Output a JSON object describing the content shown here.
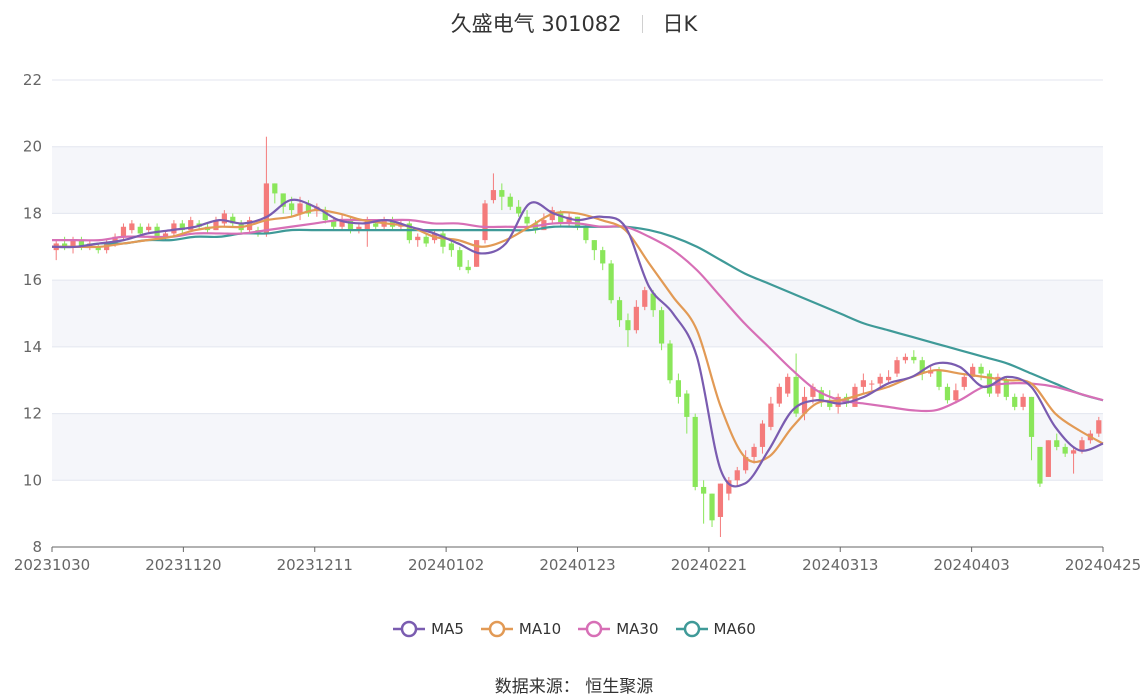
{
  "header": {
    "stock": "久盛电气 301082",
    "period": "日K"
  },
  "source": {
    "label": "数据来源：",
    "value": "恒生聚源"
  },
  "chart_data": {
    "type": "candlestick",
    "title": "久盛电气 301082 日K",
    "ylim": [
      8,
      22
    ],
    "yticks": [
      8,
      10,
      12,
      14,
      16,
      18,
      20,
      22
    ],
    "xticks": [
      "20231030",
      "20231120",
      "20231211",
      "20240102",
      "20240123",
      "20240221",
      "20240313",
      "20240403",
      "20240425"
    ],
    "legend_position": "bottom-center",
    "colors": {
      "up": "#f47b7b",
      "down": "#8ae65a",
      "MA5": "#7a5cb0",
      "MA10": "#e29a55",
      "MA30": "#d76fb6",
      "MA60": "#3f9a98"
    },
    "candles_ohlc": [
      [
        16.9,
        17.1,
        16.6,
        17.2
      ],
      [
        17.1,
        17.0,
        16.9,
        17.3
      ],
      [
        17.0,
        17.2,
        16.8,
        17.3
      ],
      [
        17.2,
        17.0,
        16.9,
        17.3
      ],
      [
        17.0,
        17.1,
        16.9,
        17.2
      ],
      [
        17.0,
        16.9,
        16.8,
        17.1
      ],
      [
        16.9,
        17.1,
        16.8,
        17.2
      ],
      [
        17.1,
        17.3,
        17.0,
        17.4
      ],
      [
        17.3,
        17.6,
        17.2,
        17.7
      ],
      [
        17.5,
        17.7,
        17.4,
        17.8
      ],
      [
        17.6,
        17.4,
        17.3,
        17.7
      ],
      [
        17.5,
        17.6,
        17.4,
        17.7
      ],
      [
        17.6,
        17.3,
        17.2,
        17.7
      ],
      [
        17.3,
        17.4,
        17.2,
        17.5
      ],
      [
        17.4,
        17.7,
        17.3,
        17.8
      ],
      [
        17.7,
        17.5,
        17.4,
        17.8
      ],
      [
        17.5,
        17.8,
        17.5,
        17.9
      ],
      [
        17.7,
        17.6,
        17.5,
        17.8
      ],
      [
        17.6,
        17.5,
        17.4,
        17.7
      ],
      [
        17.5,
        17.8,
        17.5,
        17.9
      ],
      [
        17.7,
        18.0,
        17.6,
        18.1
      ],
      [
        17.9,
        17.7,
        17.6,
        18.0
      ],
      [
        17.7,
        17.5,
        17.4,
        17.8
      ],
      [
        17.5,
        17.8,
        17.4,
        17.9
      ],
      [
        17.5,
        17.4,
        17.3,
        17.6
      ],
      [
        17.4,
        18.9,
        17.3,
        20.3
      ],
      [
        18.9,
        18.6,
        18.3,
        18.9
      ],
      [
        18.6,
        18.2,
        18.0,
        18.6
      ],
      [
        18.3,
        18.1,
        17.9,
        18.5
      ],
      [
        18.0,
        18.3,
        17.8,
        18.5
      ],
      [
        18.3,
        18.0,
        17.9,
        18.4
      ],
      [
        18.1,
        18.2,
        17.9,
        18.3
      ],
      [
        18.1,
        17.8,
        17.7,
        18.2
      ],
      [
        17.8,
        17.6,
        17.5,
        17.9
      ],
      [
        17.6,
        17.8,
        17.5,
        18.0
      ],
      [
        17.8,
        17.5,
        17.4,
        17.9
      ],
      [
        17.5,
        17.6,
        17.4,
        17.7
      ],
      [
        17.5,
        17.8,
        17.0,
        17.9
      ],
      [
        17.7,
        17.6,
        17.5,
        17.8
      ],
      [
        17.6,
        17.8,
        17.5,
        17.9
      ],
      [
        17.8,
        17.6,
        17.5,
        17.9
      ],
      [
        17.6,
        17.7,
        17.5,
        17.8
      ],
      [
        17.7,
        17.2,
        17.1,
        17.8
      ],
      [
        17.2,
        17.3,
        17.0,
        17.4
      ],
      [
        17.3,
        17.1,
        17.0,
        17.4
      ],
      [
        17.2,
        17.4,
        17.1,
        17.5
      ],
      [
        17.4,
        17.0,
        16.8,
        17.5
      ],
      [
        17.1,
        16.9,
        16.7,
        17.2
      ],
      [
        16.9,
        16.4,
        16.3,
        17.0
      ],
      [
        16.4,
        16.3,
        16.2,
        16.6
      ],
      [
        16.4,
        17.2,
        16.4,
        17.2
      ],
      [
        17.2,
        18.3,
        17.1,
        18.4
      ],
      [
        18.4,
        18.7,
        18.3,
        19.2
      ],
      [
        18.7,
        18.5,
        18.1,
        18.9
      ],
      [
        18.5,
        18.2,
        18.1,
        18.6
      ],
      [
        18.2,
        18.0,
        17.9,
        18.4
      ],
      [
        17.9,
        17.7,
        17.6,
        18.1
      ],
      [
        17.7,
        17.5,
        17.4,
        17.8
      ],
      [
        17.5,
        17.8,
        17.5,
        18.0
      ],
      [
        17.8,
        18.1,
        17.7,
        18.2
      ],
      [
        18.0,
        17.7,
        17.6,
        18.1
      ],
      [
        17.7,
        17.9,
        17.6,
        18.0
      ],
      [
        17.9,
        17.6,
        17.5,
        17.9
      ],
      [
        17.6,
        17.2,
        17.1,
        17.7
      ],
      [
        17.2,
        16.9,
        16.6,
        17.2
      ],
      [
        16.9,
        16.5,
        16.3,
        17.0
      ],
      [
        16.5,
        15.4,
        15.3,
        16.6
      ],
      [
        15.4,
        14.8,
        14.6,
        15.5
      ],
      [
        14.8,
        14.5,
        14.0,
        15.0
      ],
      [
        14.5,
        15.2,
        14.4,
        15.4
      ],
      [
        15.2,
        15.7,
        15.1,
        15.8
      ],
      [
        15.6,
        15.1,
        14.9,
        15.7
      ],
      [
        15.1,
        14.1,
        13.9,
        15.2
      ],
      [
        14.1,
        13.0,
        12.9,
        14.2
      ],
      [
        13.0,
        12.5,
        12.3,
        13.2
      ],
      [
        12.6,
        11.9,
        11.4,
        12.7
      ],
      [
        11.9,
        9.8,
        9.7,
        12.0
      ],
      [
        9.8,
        9.6,
        8.7,
        10.0
      ],
      [
        9.6,
        8.8,
        8.6,
        9.6
      ],
      [
        8.9,
        9.9,
        8.3,
        9.9
      ],
      [
        9.6,
        10.0,
        9.4,
        10.1
      ],
      [
        10.0,
        10.3,
        9.8,
        10.4
      ],
      [
        10.3,
        10.7,
        10.2,
        10.9
      ],
      [
        10.7,
        11.0,
        10.5,
        11.1
      ],
      [
        11.0,
        11.7,
        10.8,
        11.8
      ],
      [
        11.6,
        12.3,
        11.5,
        12.5
      ],
      [
        12.3,
        12.8,
        12.2,
        12.9
      ],
      [
        12.6,
        13.1,
        12.5,
        13.2
      ],
      [
        13.1,
        12.0,
        11.9,
        13.8
      ],
      [
        12.0,
        12.5,
        11.8,
        12.8
      ],
      [
        12.5,
        12.8,
        12.3,
        12.9
      ],
      [
        12.7,
        12.4,
        12.2,
        12.8
      ],
      [
        12.4,
        12.2,
        12.1,
        12.7
      ],
      [
        12.2,
        12.5,
        12.0,
        12.6
      ],
      [
        12.5,
        12.3,
        12.2,
        12.6
      ],
      [
        12.2,
        12.8,
        12.2,
        12.9
      ],
      [
        12.8,
        13.0,
        12.6,
        13.2
      ],
      [
        12.9,
        12.9,
        12.7,
        13.0
      ],
      [
        12.9,
        13.1,
        12.8,
        13.2
      ],
      [
        13.0,
        13.1,
        12.9,
        13.3
      ],
      [
        13.2,
        13.6,
        13.1,
        13.7
      ],
      [
        13.6,
        13.7,
        13.5,
        13.8
      ],
      [
        13.7,
        13.6,
        13.5,
        13.9
      ],
      [
        13.6,
        13.2,
        13.0,
        13.7
      ],
      [
        13.2,
        13.3,
        13.1,
        13.4
      ],
      [
        13.3,
        12.8,
        12.7,
        13.4
      ],
      [
        12.8,
        12.4,
        12.3,
        12.9
      ],
      [
        12.4,
        12.7,
        12.3,
        12.9
      ],
      [
        12.8,
        13.1,
        12.7,
        13.2
      ],
      [
        13.1,
        13.4,
        13.0,
        13.5
      ],
      [
        13.4,
        13.2,
        13.0,
        13.5
      ],
      [
        13.2,
        12.6,
        12.5,
        13.3
      ],
      [
        12.6,
        13.1,
        12.5,
        13.2
      ],
      [
        13.0,
        12.5,
        12.4,
        13.1
      ],
      [
        12.5,
        12.2,
        12.1,
        12.6
      ],
      [
        12.2,
        12.5,
        12.1,
        12.6
      ],
      [
        12.5,
        11.3,
        10.6,
        12.5
      ],
      [
        11.0,
        9.9,
        9.8,
        11.0
      ],
      [
        10.1,
        11.2,
        10.1,
        11.2
      ],
      [
        11.2,
        11.0,
        10.9,
        11.4
      ],
      [
        11.0,
        10.8,
        10.7,
        11.1
      ],
      [
        10.8,
        10.9,
        10.2,
        11.0
      ],
      [
        10.9,
        11.2,
        10.8,
        11.3
      ],
      [
        11.2,
        11.4,
        11.1,
        11.5
      ],
      [
        11.4,
        11.8,
        11.3,
        11.9
      ]
    ],
    "ma_lines": [
      {
        "name": "MA5",
        "values": [
          17.0,
          17.0,
          17.1,
          17.2,
          17.4,
          17.5,
          17.6,
          17.8,
          17.7,
          17.9,
          18.4,
          18.2,
          17.8,
          17.7,
          17.8,
          17.6,
          17.4,
          17.1,
          16.8,
          17.1,
          18.3,
          18.0,
          17.8,
          17.9,
          17.6,
          15.8,
          15.0,
          13.7,
          10.3,
          9.9,
          10.9,
          12.1,
          12.4,
          12.3,
          12.5,
          12.9,
          13.1,
          13.5,
          13.4,
          12.8,
          13.1,
          12.8,
          11.6,
          10.9,
          11.1
        ]
      },
      {
        "name": "MA10",
        "values": [
          17.0,
          17.0,
          17.0,
          17.1,
          17.2,
          17.3,
          17.5,
          17.6,
          17.6,
          17.8,
          17.9,
          18.1,
          18.0,
          17.8,
          17.7,
          17.6,
          17.3,
          17.2,
          17.0,
          17.2,
          17.6,
          18.0,
          18.0,
          17.8,
          17.5,
          16.5,
          15.5,
          14.5,
          12.2,
          10.7,
          10.7,
          11.6,
          12.3,
          12.4,
          12.6,
          12.8,
          13.1,
          13.3,
          13.2,
          13.1,
          13.0,
          12.9,
          12.0,
          11.5,
          11.1
        ]
      },
      {
        "name": "MA30",
        "values": [
          17.2,
          17.2,
          17.2,
          17.3,
          17.3,
          17.3,
          17.4,
          17.4,
          17.4,
          17.5,
          17.6,
          17.7,
          17.8,
          17.8,
          17.8,
          17.8,
          17.7,
          17.7,
          17.6,
          17.6,
          17.6,
          17.7,
          17.7,
          17.6,
          17.6,
          17.3,
          16.9,
          16.3,
          15.5,
          14.7,
          14.0,
          13.3,
          12.7,
          12.4,
          12.3,
          12.2,
          12.1,
          12.1,
          12.4,
          12.8,
          12.9,
          12.9,
          12.8,
          12.6,
          12.4
        ]
      },
      {
        "name": "MA60",
        "values": [
          17.0,
          17.0,
          17.1,
          17.1,
          17.2,
          17.2,
          17.3,
          17.3,
          17.4,
          17.4,
          17.5,
          17.5,
          17.5,
          17.5,
          17.5,
          17.5,
          17.5,
          17.5,
          17.5,
          17.5,
          17.5,
          17.6,
          17.6,
          17.6,
          17.6,
          17.5,
          17.3,
          17.0,
          16.6,
          16.2,
          15.9,
          15.6,
          15.3,
          15.0,
          14.7,
          14.5,
          14.3,
          14.1,
          13.9,
          13.7,
          13.5,
          13.2,
          12.9,
          12.6,
          12.4
        ]
      }
    ]
  }
}
